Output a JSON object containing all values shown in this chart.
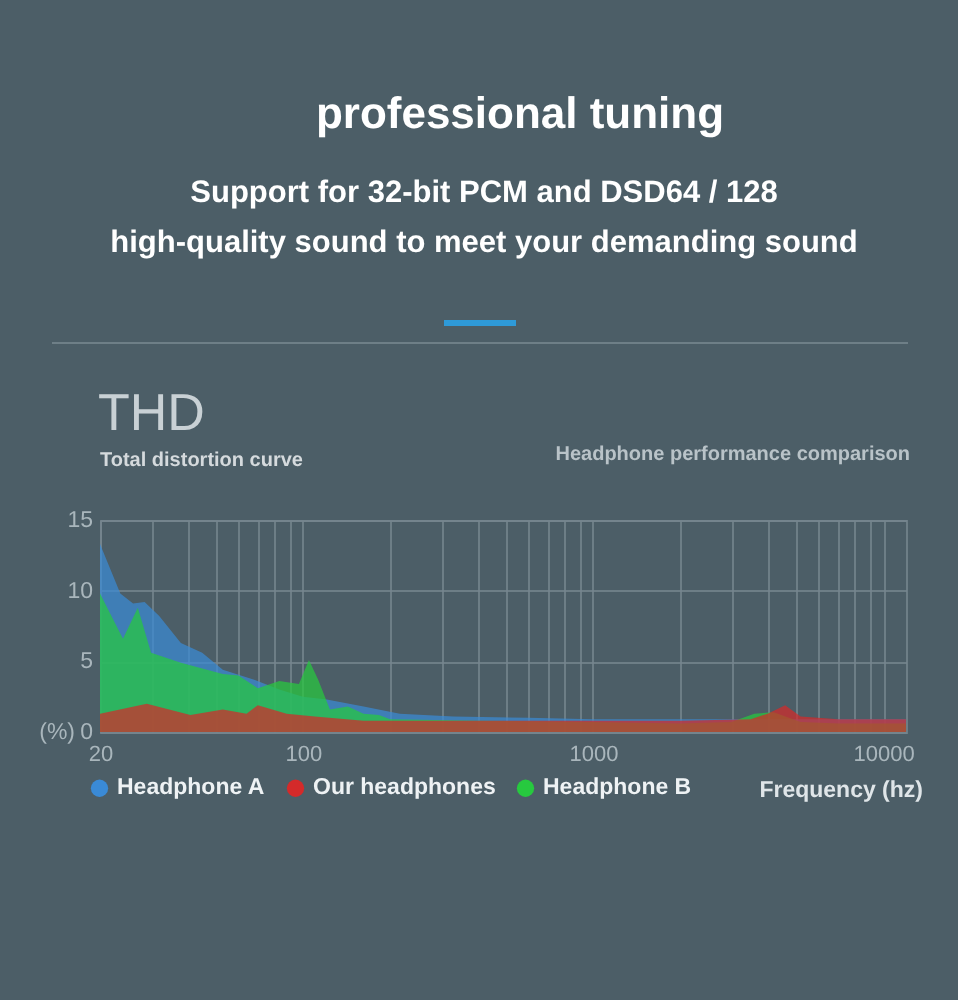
{
  "chart_data": {
    "type": "area",
    "title": "professional tuning",
    "subtitle": "Support for 32-bit PCM and DSD64 / 128\nhigh-quality sound to meet your demanding sound",
    "annotations": [
      "THD",
      "Total distortion curve",
      "Headphone performance comparison"
    ],
    "xlabel": "Frequency (hz)",
    "ylabel": "(%)",
    "log": "x",
    "xlim": [
      20,
      12000
    ],
    "xticks": [
      20,
      {
        "value": 30,
        "label": null
      },
      {
        "value": 40,
        "label": null
      },
      {
        "value": 50,
        "label": null
      },
      {
        "value": 60,
        "label": null
      },
      {
        "value": 70,
        "label": null
      },
      {
        "value": 80,
        "label": null
      },
      {
        "value": 90,
        "label": null
      },
      100,
      {
        "value": 200,
        "label": null
      },
      {
        "value": 300,
        "label": null
      },
      {
        "value": 400,
        "label": null
      },
      {
        "value": 500,
        "label": null
      },
      {
        "value": 600,
        "label": null
      },
      {
        "value": 700,
        "label": null
      },
      {
        "value": 800,
        "label": null
      },
      {
        "value": 900,
        "label": null
      },
      1000,
      {
        "value": 2000,
        "label": null
      },
      {
        "value": 3000,
        "label": null
      },
      {
        "value": 4000,
        "label": null
      },
      {
        "value": 5000,
        "label": null
      },
      {
        "value": 6000,
        "label": null
      },
      {
        "value": 7000,
        "label": null
      },
      {
        "value": 8000,
        "label": null
      },
      {
        "value": 9000,
        "label": null
      },
      10000
    ],
    "ylim": [
      0,
      15
    ],
    "yticks": [
      0,
      5,
      10,
      15
    ],
    "grid": true,
    "legend": "bottom",
    "series": [
      {
        "name": "Headphone A",
        "color": "#3a8ad6",
        "x": [
          20,
          23.5,
          26,
          28.5,
          32,
          38,
          45,
          53,
          68,
          83,
          100,
          121,
          162,
          216,
          330,
          600,
          1000,
          2000,
          4000,
          6000,
          12000
        ],
        "values": [
          13.3,
          9.8,
          9.1,
          9.2,
          8.2,
          6.3,
          5.6,
          4.4,
          3.7,
          3.0,
          2.5,
          2.3,
          1.8,
          1.3,
          1.1,
          1.0,
          0.9,
          0.9,
          0.9,
          0.9,
          0.9
        ]
      },
      {
        "name": "Our headphones",
        "color": "#d42a2a",
        "x": [
          20,
          29,
          41,
          53,
          64,
          70,
          88,
          110,
          162,
          300,
          1000,
          2000,
          3500,
          4000,
          4600,
          5200,
          7000,
          12000
        ],
        "values": [
          1.3,
          2.0,
          1.2,
          1.6,
          1.3,
          1.9,
          1.3,
          1.1,
          0.8,
          0.8,
          0.8,
          0.8,
          0.9,
          1.3,
          1.9,
          1.1,
          0.9,
          0.9
        ]
      },
      {
        "name": "Headphone B",
        "color": "#27c93f",
        "x": [
          20,
          24,
          27,
          30,
          38,
          53,
          60,
          70,
          83,
          97,
          105,
          113,
          124,
          143,
          162,
          183,
          200,
          400,
          1000,
          2000,
          3000,
          3600,
          4200,
          5200,
          7000,
          12000
        ],
        "values": [
          9.8,
          6.6,
          8.8,
          5.6,
          4.9,
          4.1,
          4.0,
          3.1,
          3.6,
          3.4,
          5.1,
          3.7,
          1.6,
          1.8,
          1.3,
          1.2,
          0.9,
          0.8,
          0.7,
          0.6,
          0.7,
          1.3,
          1.4,
          0.7,
          0.6,
          0.6
        ]
      }
    ]
  }
}
